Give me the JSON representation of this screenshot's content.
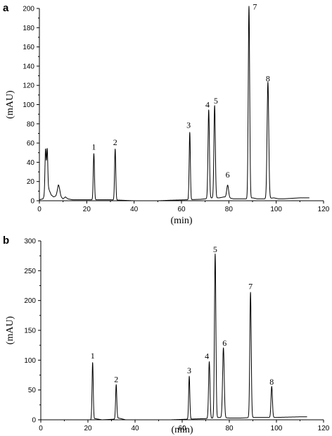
{
  "chart_data": [
    {
      "panel": "a",
      "type": "line",
      "xlabel": "(min)",
      "ylabel": "(mAU)",
      "xlim": [
        0,
        120
      ],
      "ylim": [
        0,
        200
      ],
      "xticks": [
        0,
        20,
        40,
        60,
        80,
        100,
        120
      ],
      "yticks": [
        0,
        20,
        40,
        60,
        80,
        100,
        120,
        140,
        160,
        180,
        200
      ],
      "trace_end": 114,
      "baseline": [
        [
          0,
          1
        ],
        [
          1.5,
          2
        ],
        [
          2.3,
          6
        ],
        [
          4,
          12
        ],
        [
          5,
          6
        ],
        [
          6,
          4
        ],
        [
          7,
          5
        ],
        [
          8,
          10
        ],
        [
          9,
          4
        ],
        [
          10,
          2
        ],
        [
          11,
          4
        ],
        [
          12,
          2
        ],
        [
          14,
          1
        ],
        [
          20,
          1
        ],
        [
          30,
          1
        ],
        [
          40,
          0
        ],
        [
          50,
          0
        ],
        [
          55,
          0.5
        ],
        [
          62,
          1
        ],
        [
          68,
          1.5
        ],
        [
          70,
          2
        ],
        [
          73,
          3
        ],
        [
          76,
          3
        ],
        [
          78,
          4
        ],
        [
          80,
          3
        ],
        [
          82,
          2
        ],
        [
          85,
          2
        ],
        [
          88,
          2
        ],
        [
          90,
          3
        ],
        [
          92,
          2
        ],
        [
          95,
          2
        ],
        [
          99,
          3
        ],
        [
          101,
          2
        ],
        [
          103,
          2
        ],
        [
          110,
          3
        ],
        [
          114,
          3
        ]
      ],
      "peaks": [
        {
          "x": 2.6,
          "y": 46,
          "w": 0.25
        },
        {
          "x": 3.3,
          "y": 44,
          "w": 0.25
        },
        {
          "x": 8.2,
          "y": 7,
          "w": 0.5
        },
        {
          "label": "1",
          "x": 23,
          "y": 48,
          "w": 0.25
        },
        {
          "label": "2",
          "x": 32,
          "y": 53,
          "w": 0.25
        },
        {
          "label": "3",
          "x": 63.5,
          "y": 70,
          "w": 0.25
        },
        {
          "label": "4",
          "x": 71.5,
          "y": 92,
          "w": 0.3
        },
        {
          "label": "5",
          "x": 74,
          "y": 96,
          "w": 0.3
        },
        {
          "label": "6",
          "x": 79.5,
          "y": 13,
          "w": 0.4
        },
        {
          "label": "7",
          "x": 88.5,
          "y": 200,
          "w": 0.3
        },
        {
          "label": "8",
          "x": 96.5,
          "y": 121,
          "w": 0.35
        }
      ],
      "peak_labels": [
        {
          "text": "1",
          "x": 23,
          "y": 53
        },
        {
          "text": "2",
          "x": 32,
          "y": 58
        },
        {
          "text": "3",
          "x": 63,
          "y": 76
        },
        {
          "text": "4",
          "x": 71,
          "y": 97
        },
        {
          "text": "5",
          "x": 74.5,
          "y": 101
        },
        {
          "text": "6",
          "x": 79.5,
          "y": 24
        },
        {
          "text": "7",
          "x": 91,
          "y": 199
        },
        {
          "text": "8",
          "x": 96.5,
          "y": 124
        }
      ]
    },
    {
      "panel": "b",
      "type": "line",
      "xlabel": "(min)",
      "ylabel": "(mAU)",
      "xlim": [
        0,
        120
      ],
      "ylim": [
        0,
        300
      ],
      "xticks": [
        0,
        20,
        40,
        60,
        80,
        100,
        120
      ],
      "yticks": [
        0,
        50,
        100,
        150,
        200,
        250,
        300
      ],
      "trace_end": 113,
      "baseline": [
        [
          0,
          0
        ],
        [
          21,
          0
        ],
        [
          23,
          2
        ],
        [
          26,
          0
        ],
        [
          31,
          1
        ],
        [
          33,
          3
        ],
        [
          36,
          0
        ],
        [
          55,
          0
        ],
        [
          62,
          1
        ],
        [
          70,
          2
        ],
        [
          73,
          3
        ],
        [
          76,
          4
        ],
        [
          80,
          3
        ],
        [
          85,
          3
        ],
        [
          90,
          4
        ],
        [
          95,
          4
        ],
        [
          100,
          4
        ],
        [
          110,
          5
        ],
        [
          113,
          5
        ]
      ],
      "peaks": [
        {
          "label": "1",
          "x": 22,
          "y": 95,
          "w": 0.25
        },
        {
          "label": "2",
          "x": 32,
          "y": 57,
          "w": 0.25
        },
        {
          "label": "3",
          "x": 63,
          "y": 72,
          "w": 0.25
        },
        {
          "label": "4",
          "x": 71.5,
          "y": 95,
          "w": 0.3
        },
        {
          "label": "5",
          "x": 74,
          "y": 275,
          "w": 0.3
        },
        {
          "label": "6",
          "x": 77.5,
          "y": 117,
          "w": 0.35
        },
        {
          "label": "7",
          "x": 89,
          "y": 210,
          "w": 0.3
        },
        {
          "label": "8",
          "x": 98,
          "y": 52,
          "w": 0.3
        }
      ],
      "peak_labels": [
        {
          "text": "1",
          "x": 22,
          "y": 103
        },
        {
          "text": "2",
          "x": 32,
          "y": 63
        },
        {
          "text": "3",
          "x": 63,
          "y": 78
        },
        {
          "text": "4",
          "x": 70.5,
          "y": 102
        },
        {
          "text": "5",
          "x": 74,
          "y": 281
        },
        {
          "text": "6",
          "x": 78,
          "y": 124
        },
        {
          "text": "7",
          "x": 89,
          "y": 219
        },
        {
          "text": "8",
          "x": 98,
          "y": 59
        }
      ]
    }
  ]
}
